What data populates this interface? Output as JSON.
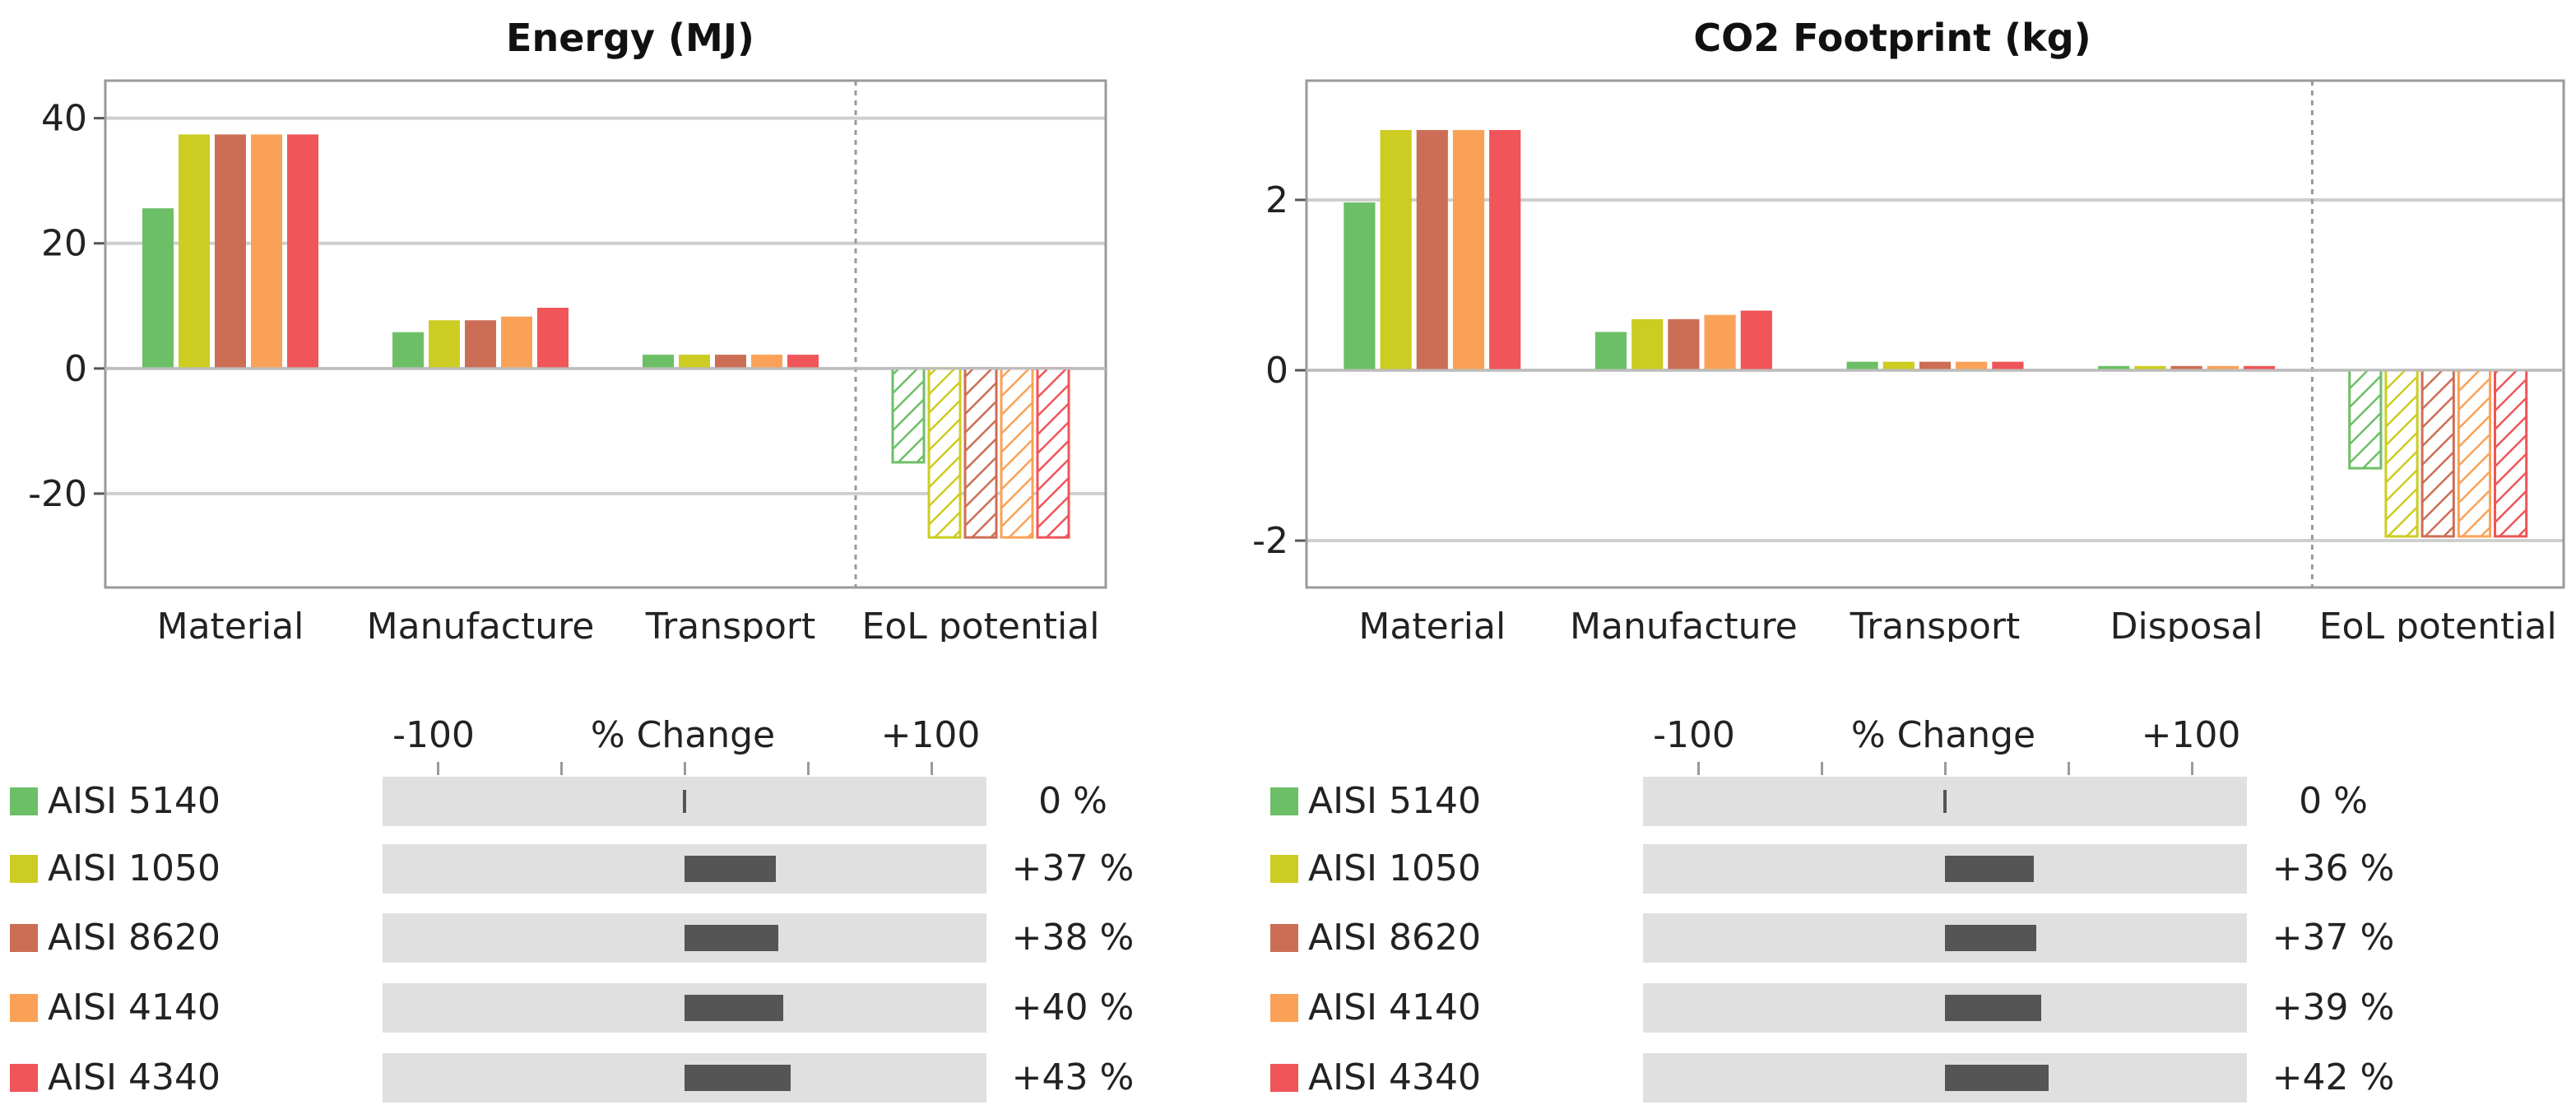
{
  "chart_data": [
    {
      "type": "bar",
      "title": "Energy (MJ)",
      "categories": [
        "Material",
        "Manufacture",
        "Transport",
        "EoL potential"
      ],
      "series": [
        {
          "name": "AISI 5140",
          "values": [
            25.6,
            5.8,
            2.2,
            -15
          ]
        },
        {
          "name": "AISI 1050",
          "values": [
            37.4,
            7.7,
            2.2,
            -27
          ]
        },
        {
          "name": "AISI 8620",
          "values": [
            37.4,
            7.7,
            2.2,
            -27
          ]
        },
        {
          "name": "AISI 4140",
          "values": [
            37.4,
            8.3,
            2.2,
            -27
          ]
        },
        {
          "name": "AISI 4340",
          "values": [
            37.4,
            9.7,
            2.2,
            -27
          ]
        }
      ],
      "hatched_categories": [
        "EoL potential"
      ],
      "ylim": [
        -35,
        46
      ],
      "yticks": [
        -20,
        0,
        20,
        40
      ],
      "grid": true,
      "divider_before": "EoL potential"
    },
    {
      "type": "bar",
      "title": "CO2 Footprint (kg)",
      "categories": [
        "Material",
        "Manufacture",
        "Transport",
        "Disposal",
        "EoL potential"
      ],
      "series": [
        {
          "name": "AISI 5140",
          "values": [
            1.97,
            0.45,
            0.1,
            0.05,
            -1.15
          ]
        },
        {
          "name": "AISI 1050",
          "values": [
            2.82,
            0.6,
            0.1,
            0.05,
            -1.95
          ]
        },
        {
          "name": "AISI 8620",
          "values": [
            2.82,
            0.6,
            0.1,
            0.05,
            -1.95
          ]
        },
        {
          "name": "AISI 4140",
          "values": [
            2.82,
            0.65,
            0.1,
            0.05,
            -1.95
          ]
        },
        {
          "name": "AISI 4340",
          "values": [
            2.82,
            0.7,
            0.1,
            0.05,
            -1.95
          ]
        }
      ],
      "hatched_categories": [
        "EoL potential"
      ],
      "ylim": [
        -2.55,
        3.4
      ],
      "yticks": [
        -2,
        0,
        2
      ],
      "grid": true,
      "divider_before": "EoL potential"
    }
  ],
  "colors": [
    "#6dbf67",
    "#cccc22",
    "#cc6e55",
    "#f9a257",
    "#ef5559"
  ],
  "legend_panels": [
    {
      "axis": {
        "left_label": "-100",
        "center_label": "% Change",
        "right_label": "+100"
      },
      "rows": [
        {
          "name": "AISI 5140",
          "pct": 0,
          "label": "0 %"
        },
        {
          "name": "AISI 1050",
          "pct": 37,
          "label": "+37 %"
        },
        {
          "name": "AISI 8620",
          "pct": 38,
          "label": "+38 %"
        },
        {
          "name": "AISI 4140",
          "pct": 40,
          "label": "+40 %"
        },
        {
          "name": "AISI 4340",
          "pct": 43,
          "label": "+43 %"
        }
      ]
    },
    {
      "axis": {
        "left_label": "-100",
        "center_label": "% Change",
        "right_label": "+100"
      },
      "rows": [
        {
          "name": "AISI 5140",
          "pct": 0,
          "label": "0 %"
        },
        {
          "name": "AISI 1050",
          "pct": 36,
          "label": "+36 %"
        },
        {
          "name": "AISI 8620",
          "pct": 37,
          "label": "+37 %"
        },
        {
          "name": "AISI 4140",
          "pct": 39,
          "label": "+39 %"
        },
        {
          "name": "AISI 4340",
          "pct": 42,
          "label": "+42 %"
        }
      ]
    }
  ]
}
